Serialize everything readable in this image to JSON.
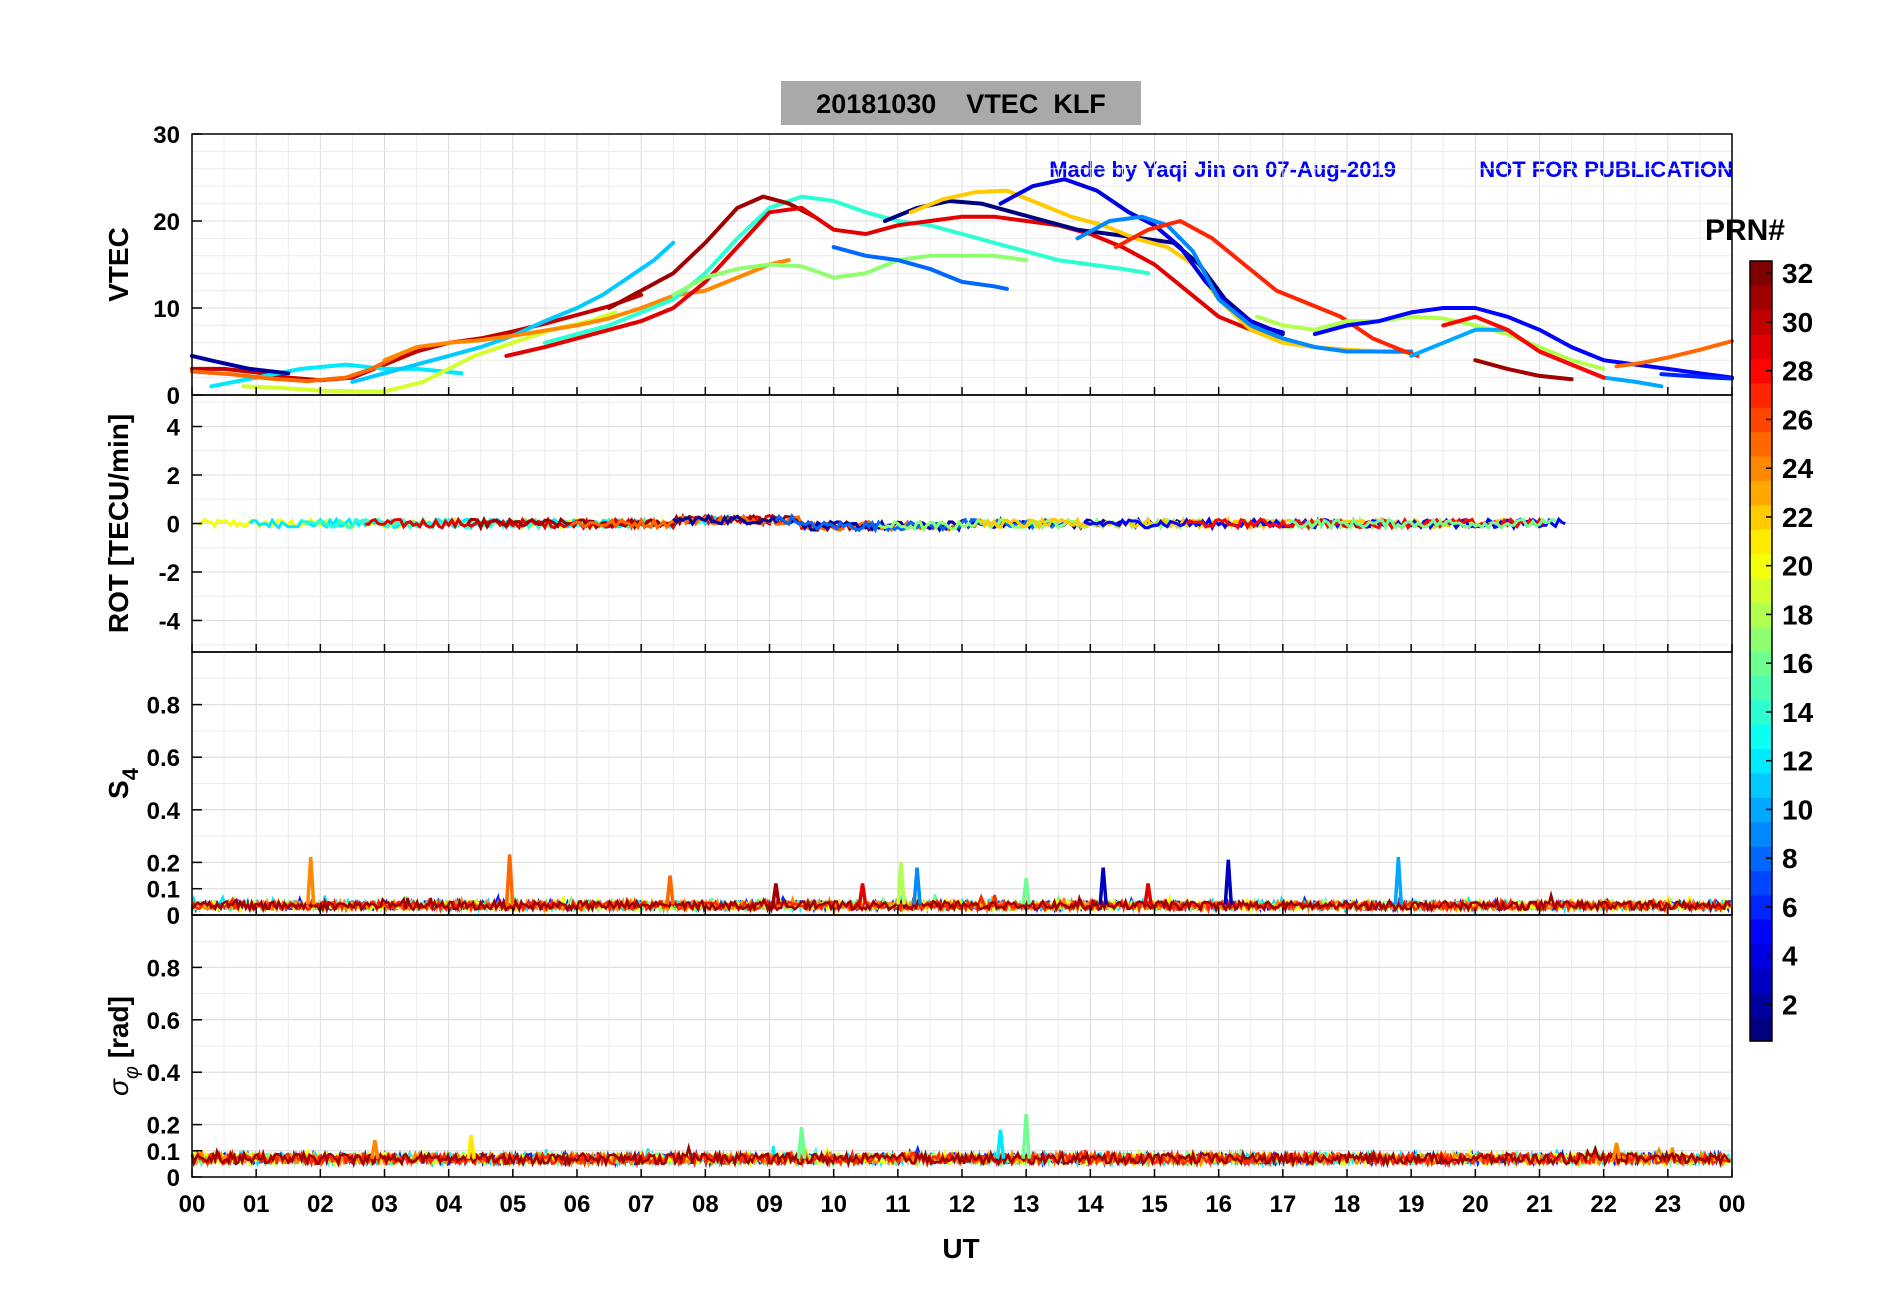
{
  "figure": {
    "title": "20181030    VTEC  KLF",
    "credit": "Made by Yaqi Jin on 07-Aug-2019",
    "notice": "NOT FOR PUBLICATION",
    "xlabel": "UT",
    "xticks": [
      "00",
      "01",
      "02",
      "03",
      "04",
      "05",
      "06",
      "07",
      "08",
      "09",
      "10",
      "11",
      "12",
      "13",
      "14",
      "15",
      "16",
      "17",
      "18",
      "19",
      "20",
      "21",
      "22",
      "23",
      "00"
    ]
  },
  "colorbar": {
    "label": "PRN#",
    "range": [
      1,
      32
    ],
    "ticks": [
      "2",
      "4",
      "6",
      "8",
      "10",
      "12",
      "14",
      "16",
      "18",
      "20",
      "22",
      "24",
      "26",
      "28",
      "30",
      "32"
    ],
    "colormap": "jet"
  },
  "chart_data": [
    {
      "type": "line",
      "panel": "vtec",
      "ylabel": "VTEC",
      "ylim": [
        0,
        30
      ],
      "yticks": [
        "0",
        "10",
        "20",
        "30"
      ],
      "xlim": [
        0,
        24
      ],
      "grid": true,
      "series": [
        {
          "prn": 30,
          "x": [
            0,
            0.5,
            1,
            1.5,
            2,
            2.5,
            3,
            3.5,
            4,
            4.5,
            5,
            5.5,
            6,
            6.5,
            7
          ],
          "y": [
            3,
            3,
            2.6,
            2,
            1.7,
            2,
            3.5,
            5,
            6,
            6.5,
            7.3,
            8.2,
            9.2,
            10.2,
            11.5
          ]
        },
        {
          "prn": 12,
          "x": [
            0.3,
            1,
            1.7,
            2.4,
            3,
            3.5,
            4.2
          ],
          "y": [
            1,
            2,
            3,
            3.5,
            3,
            3,
            2.5
          ]
        },
        {
          "prn": 19,
          "x": [
            0.8,
            1.4,
            2,
            2.6,
            3,
            3.6,
            4,
            4.4,
            5,
            5.6,
            6.2,
            6.6
          ],
          "y": [
            1,
            0.8,
            0.5,
            0.4,
            0.4,
            1.5,
            3,
            4.5,
            6,
            7.5,
            8.5,
            9.5
          ]
        },
        {
          "prn": 2,
          "x": [
            0,
            0.4,
            0.9,
            1.5
          ],
          "y": [
            4.5,
            3.8,
            3,
            2.5
          ]
        },
        {
          "prn": 25,
          "x": [
            0,
            0.6,
            1.2,
            1.8,
            2.4,
            2.8,
            3.2
          ],
          "y": [
            2.7,
            2.4,
            1.9,
            1.6,
            2,
            3,
            4.5
          ]
        },
        {
          "prn": 11,
          "x": [
            2.5,
            3,
            3.5,
            4,
            4.5,
            5,
            5.5,
            6,
            6.4,
            6.8,
            7.2,
            7.5
          ],
          "y": [
            1.5,
            2.5,
            3.5,
            4.5,
            5.5,
            6.8,
            8.5,
            10,
            11.5,
            13.5,
            15.5,
            17.5
          ]
        },
        {
          "prn": 24,
          "x": [
            3,
            3.5,
            4,
            4.5,
            5,
            5.5,
            6,
            6.5,
            7,
            7.5,
            8,
            8.5,
            9,
            9.3
          ],
          "y": [
            4,
            5.5,
            6,
            6.3,
            6.8,
            7.4,
            8,
            8.8,
            10,
            11.4,
            12,
            13.5,
            15,
            15.5
          ]
        },
        {
          "prn": 14,
          "x": [
            5.5,
            6,
            6.5,
            7,
            7.5,
            8,
            8.5,
            9,
            9.5,
            10,
            10.5,
            11,
            11.5,
            12,
            12.5,
            13,
            13.5,
            14,
            14.5,
            14.9
          ],
          "y": [
            6,
            7,
            8,
            9.5,
            11,
            14,
            18,
            21.5,
            22.8,
            22.3,
            21,
            20,
            19.5,
            18.5,
            17.5,
            16.5,
            15.5,
            15,
            14.5,
            14
          ]
        },
        {
          "prn": 31,
          "x": [
            6.5,
            7,
            7.5,
            8,
            8.5,
            8.9,
            9.3,
            9.7
          ],
          "y": [
            10,
            12,
            14,
            17.5,
            21.5,
            22.8,
            22,
            20.5
          ]
        },
        {
          "prn": 29,
          "x": [
            4.9,
            5.5,
            6,
            6.5,
            7,
            7.5,
            8,
            8.5,
            9,
            9.5,
            10,
            10.5,
            11,
            11.5,
            12,
            12.5,
            13,
            13.5,
            14,
            14.5,
            15,
            15.5,
            16,
            16.5,
            16.9
          ],
          "y": [
            4.5,
            5.5,
            6.5,
            7.5,
            8.5,
            10,
            13,
            17,
            21,
            21.5,
            19,
            18.5,
            19.5,
            20,
            20.5,
            20.5,
            20,
            19.5,
            18.5,
            17,
            15,
            12,
            9,
            7.5,
            6.5
          ]
        },
        {
          "prn": 17,
          "x": [
            7.5,
            8,
            8.5,
            9,
            9.5,
            10,
            10.5,
            11,
            11.5,
            12,
            12.5,
            13
          ],
          "y": [
            11.5,
            13.5,
            14.5,
            15,
            14.8,
            13.5,
            14,
            15.5,
            16,
            16,
            16,
            15.5
          ]
        },
        {
          "prn": 8,
          "x": [
            10,
            10.5,
            11,
            11.5,
            12,
            12.5,
            12.7
          ],
          "y": [
            17,
            16,
            15.5,
            14.5,
            13,
            12.5,
            12.2
          ]
        },
        {
          "prn": 1,
          "x": [
            10.8,
            11.3,
            11.8,
            12.3,
            12.8,
            13.3,
            13.8,
            14.3,
            14.8,
            15.3,
            15.7,
            16.1,
            16.5,
            17
          ],
          "y": [
            20,
            21.5,
            22.3,
            22,
            21,
            20,
            19,
            18.5,
            18,
            17.5,
            15,
            11,
            8.5,
            7
          ]
        },
        {
          "prn": 22,
          "x": [
            11.2,
            11.7,
            12.2,
            12.7,
            13.2,
            13.7,
            14.2,
            14.7,
            15.2,
            15.6,
            16,
            16.5,
            17,
            17.5,
            18,
            18.5,
            19
          ],
          "y": [
            21,
            22.5,
            23.3,
            23.5,
            22,
            20.5,
            19.5,
            18,
            17,
            15,
            11,
            7.5,
            6,
            5.5,
            5.2,
            5,
            4.9
          ]
        },
        {
          "prn": 4,
          "x": [
            12.6,
            13.1,
            13.6,
            14.1,
            14.6,
            15,
            15.4,
            15.8,
            16.2,
            16.6,
            17
          ],
          "y": [
            22,
            24,
            24.8,
            23.5,
            21,
            19.5,
            17,
            13,
            10,
            8,
            7.2
          ]
        },
        {
          "prn": 9,
          "x": [
            13.8,
            14.3,
            14.8,
            15.2,
            15.6,
            16,
            16.5,
            17,
            17.5,
            18,
            18.5,
            19
          ],
          "y": [
            18,
            20,
            20.5,
            19.5,
            16.5,
            11,
            8,
            6.5,
            5.5,
            5,
            5,
            5
          ]
        },
        {
          "prn": 27,
          "x": [
            14.4,
            14.9,
            15.4,
            15.9,
            16.4,
            16.9,
            17.4,
            17.9,
            18.4,
            18.9,
            19.1
          ],
          "y": [
            17,
            19,
            20,
            18,
            15,
            12,
            10.5,
            9,
            6.5,
            5,
            4.5
          ]
        },
        {
          "prn": 18,
          "x": [
            16.6,
            17,
            17.5,
            18,
            18.5,
            19,
            19.5,
            20,
            20.5,
            21,
            21.5,
            22
          ],
          "y": [
            9,
            8,
            7.5,
            8.5,
            8.5,
            9,
            8.8,
            8,
            7,
            5.5,
            4,
            3
          ]
        },
        {
          "prn": 5,
          "x": [
            17.5,
            18,
            18.5,
            19,
            19.5,
            20,
            20.5,
            21,
            21.5,
            22,
            22.5,
            23,
            23.5,
            24
          ],
          "y": [
            7,
            8,
            8.5,
            9.5,
            10,
            10,
            9,
            7.5,
            5.5,
            4,
            3.5,
            3,
            2.5,
            2
          ]
        },
        {
          "prn": 10,
          "x": [
            19,
            19.5,
            20,
            20.5,
            21,
            21.5,
            22,
            22.5,
            22.9
          ],
          "y": [
            4.5,
            6,
            7.5,
            7.5,
            5,
            3.5,
            2,
            1.5,
            1
          ]
        },
        {
          "prn": 28,
          "x": [
            19.5,
            20,
            20.5,
            21,
            21.5,
            22
          ],
          "y": [
            8,
            9,
            7.5,
            5,
            3.5,
            2
          ]
        },
        {
          "prn": 25,
          "x": [
            22.2,
            22.6,
            23,
            23.5,
            24
          ],
          "y": [
            3.3,
            3.7,
            4.3,
            5.2,
            6.2
          ]
        },
        {
          "prn": 31,
          "x": [
            20,
            20.5,
            21,
            21.5
          ],
          "y": [
            4,
            3,
            2.2,
            1.8
          ]
        },
        {
          "prn": 6,
          "x": [
            22.9,
            23.3,
            23.7,
            24
          ],
          "y": [
            2.4,
            2.2,
            2,
            1.9
          ]
        }
      ]
    },
    {
      "type": "line",
      "panel": "rot",
      "ylabel": "ROT [TECU/min]",
      "ylim": [
        -5.3,
        5.3
      ],
      "yticks": [
        "-4",
        "-2",
        "0",
        "2",
        "4"
      ],
      "xlim": [
        0,
        24
      ],
      "grid": true,
      "baseline": 0,
      "amplitude_max": 0.6,
      "note": "many PRN tracks clustered near zero"
    },
    {
      "type": "line",
      "panel": "s4",
      "ylabel": "S4",
      "ylim": [
        0,
        1
      ],
      "yticks": [
        "0",
        "0.1",
        "0.2",
        "0.4",
        "0.6",
        "0.8"
      ],
      "xlim": [
        0,
        24
      ],
      "grid": true,
      "background_level": [
        0.02,
        0.06
      ],
      "spikes": [
        {
          "x": 1.85,
          "y": 0.22,
          "prn": 24
        },
        {
          "x": 4.95,
          "y": 0.23,
          "prn": 25
        },
        {
          "x": 7.45,
          "y": 0.15,
          "prn": 25
        },
        {
          "x": 10.45,
          "y": 0.12,
          "prn": 29
        },
        {
          "x": 11.05,
          "y": 0.2,
          "prn": 18
        },
        {
          "x": 11.3,
          "y": 0.18,
          "prn": 9
        },
        {
          "x": 13.0,
          "y": 0.14,
          "prn": 16
        },
        {
          "x": 14.2,
          "y": 0.18,
          "prn": 3
        },
        {
          "x": 14.9,
          "y": 0.12,
          "prn": 29
        },
        {
          "x": 16.15,
          "y": 0.21,
          "prn": 3
        },
        {
          "x": 18.8,
          "y": 0.22,
          "prn": 10
        },
        {
          "x": 9.1,
          "y": 0.12,
          "prn": 31
        }
      ]
    },
    {
      "type": "line",
      "panel": "sigma_phi",
      "ylabel": "σφ [rad]",
      "ylim": [
        0,
        1
      ],
      "yticks": [
        "0",
        "0.1",
        "0.2",
        "0.4",
        "0.6",
        "0.8"
      ],
      "xlim": [
        0,
        24
      ],
      "grid": true,
      "background_level": [
        0.05,
        0.1
      ],
      "spikes": [
        {
          "x": 2.85,
          "y": 0.14,
          "prn": 24
        },
        {
          "x": 4.35,
          "y": 0.16,
          "prn": 21
        },
        {
          "x": 9.5,
          "y": 0.19,
          "prn": 16
        },
        {
          "x": 12.6,
          "y": 0.18,
          "prn": 12
        },
        {
          "x": 13.0,
          "y": 0.24,
          "prn": 16
        },
        {
          "x": 22.2,
          "y": 0.13,
          "prn": 24
        }
      ]
    }
  ]
}
